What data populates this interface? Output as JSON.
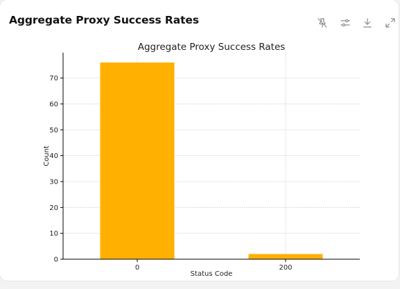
{
  "card": {
    "title": "Aggregate Proxy Success Rates"
  },
  "toolbar": {
    "icons": [
      "pin-off-icon",
      "sliders-icon",
      "download-icon",
      "expand-icon"
    ]
  },
  "colors": {
    "bar": "#FFB000",
    "grid": "#c8c8c8",
    "axis": "#000000"
  },
  "chart_data": {
    "type": "bar",
    "title": "Aggregate Proxy Success Rates",
    "xlabel": "Status Code",
    "ylabel": "Count",
    "categories": [
      "0",
      "200"
    ],
    "values": [
      76,
      2
    ],
    "ylim": [
      0,
      79.8
    ],
    "yticks": [
      0,
      10,
      20,
      30,
      40,
      50,
      60,
      70
    ],
    "grid": true,
    "legend": "none"
  }
}
